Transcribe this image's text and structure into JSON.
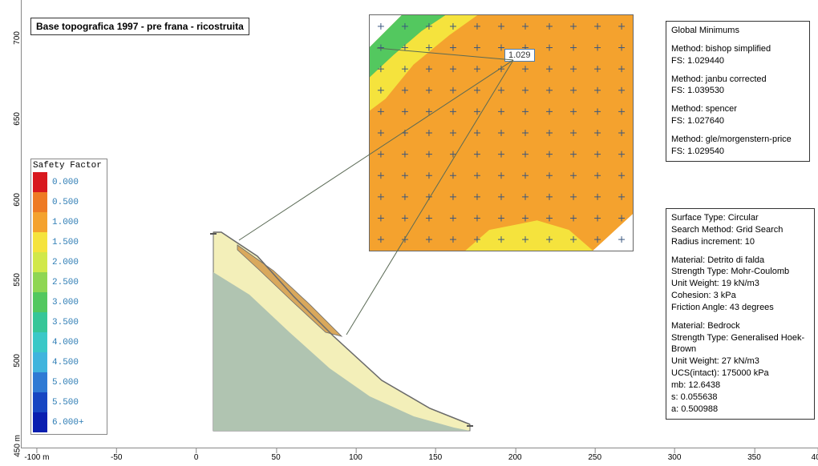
{
  "title": "Base topografica 1997 - pre frana - ricostruita",
  "fs_label": "1.029",
  "legend": {
    "title": "Safety Factor",
    "items": [
      {
        "color": "#d8181e",
        "label": "0.000"
      },
      {
        "color": "#ee7a24",
        "label": "0.500"
      },
      {
        "color": "#f4a22e",
        "label": "1.000"
      },
      {
        "color": "#f5e33d",
        "label": "1.500"
      },
      {
        "color": "#d1e84a",
        "label": "2.000"
      },
      {
        "color": "#8fd653",
        "label": "2.500"
      },
      {
        "color": "#53c85f",
        "label": "3.000"
      },
      {
        "color": "#36c698",
        "label": "3.500"
      },
      {
        "color": "#3ac8c7",
        "label": "4.000"
      },
      {
        "color": "#40b4dd",
        "label": "4.500"
      },
      {
        "color": "#2f7ad4",
        "label": "5.000"
      },
      {
        "color": "#1746c2",
        "label": "5.500"
      },
      {
        "color": "#0a1fb0",
        "label": "6.000+"
      }
    ]
  },
  "x_axis": {
    "ticks": [
      {
        "pos": 0.02,
        "label": "-100 m"
      },
      {
        "pos": 0.12,
        "label": "-50"
      },
      {
        "pos": 0.22,
        "label": "0"
      },
      {
        "pos": 0.32,
        "label": "50"
      },
      {
        "pos": 0.42,
        "label": "100"
      },
      {
        "pos": 0.52,
        "label": "150"
      },
      {
        "pos": 0.62,
        "label": "200"
      },
      {
        "pos": 0.72,
        "label": "250"
      },
      {
        "pos": 0.82,
        "label": "300"
      },
      {
        "pos": 0.92,
        "label": "350"
      },
      {
        "pos": 1.0,
        "label": "400"
      }
    ]
  },
  "y_axis": {
    "ticks": [
      {
        "pos": 0.95,
        "label": "450 m"
      },
      {
        "pos": 0.77,
        "label": "500"
      },
      {
        "pos": 0.59,
        "label": "550"
      },
      {
        "pos": 0.41,
        "label": "600"
      },
      {
        "pos": 0.23,
        "label": "650"
      },
      {
        "pos": 0.05,
        "label": "700"
      }
    ]
  },
  "global_min": {
    "title": "Global Minimums",
    "methods": [
      {
        "name": "Method: bishop simplified",
        "fs": "FS: 1.029440"
      },
      {
        "name": "Method: janbu corrected",
        "fs": "FS: 1.039530"
      },
      {
        "name": "Method: spencer",
        "fs": "FS: 1.027640"
      },
      {
        "name": "Method: gle/morgenstern-price",
        "fs": "FS: 1.029540"
      }
    ]
  },
  "surface_info": {
    "lines1": [
      "Surface Type: Circular",
      "Search Method: Grid Search",
      "Radius increment: 10"
    ],
    "lines2": [
      "Material: Detrito di falda",
      "Strength Type: Mohr-Coulomb",
      "Unit Weight: 19 kN/m3",
      "Cohesion: 3 kPa",
      "Friction Angle: 43 degrees"
    ],
    "lines3": [
      "Material: Bedrock",
      "Strength Type: Generalised Hoek-Brown",
      "Unit Weight: 27 kN/m3",
      "UCS(intact): 175000 kPa",
      "mb: 12.6438",
      "s: 0.055638",
      "a: 0.500988"
    ]
  },
  "contour": {
    "bg_color": "#f4a22e",
    "highlight_color": "#f5e33d",
    "green_color": "#53c85f",
    "cross_color": "#39567f",
    "grid_n": 11
  },
  "slope": {
    "bedrock_color": "#b0c4b1",
    "detrito_color": "#f3efb9",
    "surface_color": "#d9a85c",
    "outline_color": "#6a6a6a"
  }
}
